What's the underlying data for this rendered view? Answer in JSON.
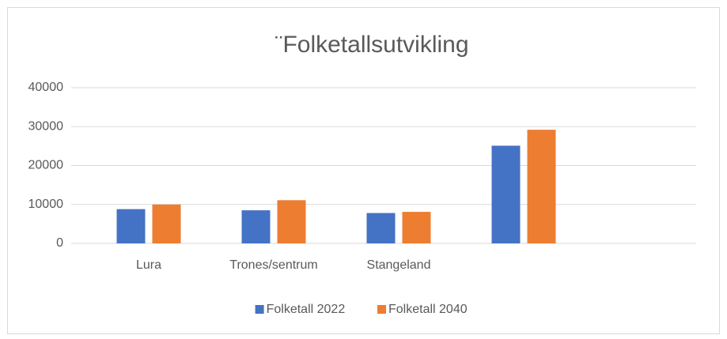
{
  "chart_data": {
    "type": "bar",
    "title": "¨Folketallsutvikling",
    "categories": [
      "Lura",
      "Trones/sentrum",
      "Stangeland",
      null,
      null
    ],
    "series": [
      {
        "name": "Folketall 2022",
        "color": "#4472c4",
        "values": [
          8800,
          8500,
          7800,
          25100,
          null
        ]
      },
      {
        "name": "Folketall 2040",
        "color": "#ed7d31",
        "values": [
          10000,
          11100,
          8100,
          29200,
          null
        ]
      }
    ],
    "ylim": [
      0,
      40000
    ],
    "yticks": [
      0,
      10000,
      20000,
      30000,
      40000
    ],
    "grid": true,
    "legend": "bottom"
  }
}
